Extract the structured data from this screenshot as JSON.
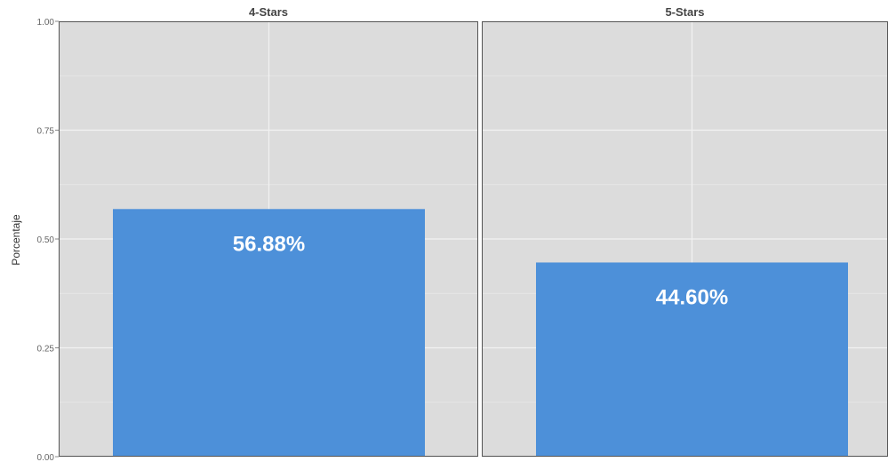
{
  "chart_data": {
    "type": "bar",
    "ylabel": "Porcentaje",
    "ylim": [
      0,
      1
    ],
    "yticks": [
      "0.00",
      "0.25",
      "0.50",
      "0.75",
      "1.00"
    ],
    "grid": true,
    "facets": [
      {
        "title": "4-Stars",
        "value": 0.5688,
        "label": "56.88%"
      },
      {
        "title": "5-Stars",
        "value": 0.446,
        "label": "44.60%"
      }
    ],
    "colors": {
      "bar": "#4d90d9",
      "panel": "#dcdcdc",
      "grid": "#f2f2f2",
      "border": "#555555"
    }
  }
}
